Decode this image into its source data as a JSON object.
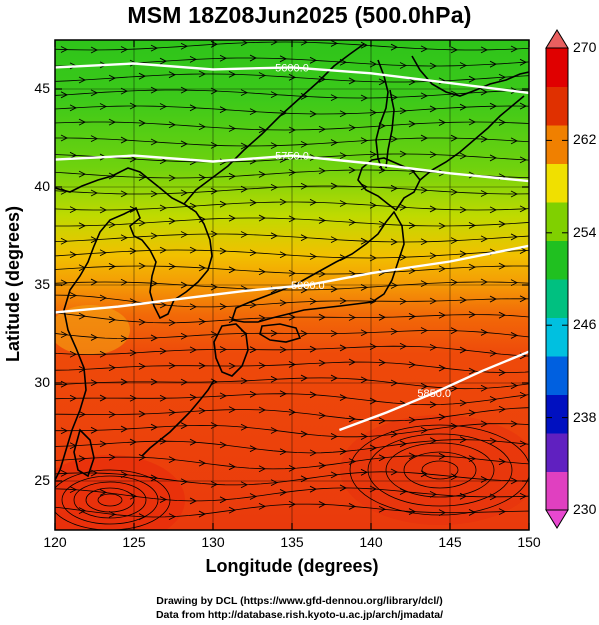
{
  "title": "MSM 18Z08Jun2025 (500.0hPa)",
  "x_axis": {
    "label": "Longitude (degrees)",
    "range": [
      120,
      150
    ],
    "ticks": [
      "120",
      "125",
      "130",
      "135",
      "140",
      "145",
      "150"
    ]
  },
  "y_axis": {
    "label": "Latitude  (degrees)",
    "range": [
      22.5,
      47.5
    ],
    "ticks": [
      "25",
      "30",
      "35",
      "40",
      "45"
    ]
  },
  "colorbar": {
    "range": [
      230,
      270
    ],
    "ticks": [
      "230",
      "238",
      "246",
      "254",
      "262",
      "270"
    ],
    "colors": [
      "#e040c0",
      "#6020c0",
      "#0010c0",
      "#0060e0",
      "#00c0e0",
      "#00c080",
      "#20c020",
      "#80d000",
      "#f0e000",
      "#f08000",
      "#e03000",
      "#e00000"
    ]
  },
  "contours": [
    {
      "label": "5600.0",
      "lat_at_lon": [
        [
          120,
          46.1
        ],
        [
          125,
          46.3
        ],
        [
          130,
          46.0
        ],
        [
          135,
          46.1
        ],
        [
          140,
          45.8
        ],
        [
          145,
          45.3
        ],
        [
          150,
          44.8
        ]
      ]
    },
    {
      "label": "5750.0",
      "lat_at_lon": [
        [
          120,
          41.4
        ],
        [
          125,
          41.6
        ],
        [
          130,
          41.3
        ],
        [
          135,
          41.6
        ],
        [
          140,
          41.2
        ],
        [
          145,
          40.7
        ],
        [
          150,
          40.3
        ]
      ]
    },
    {
      "label": "5900.0",
      "lat_at_lon": [
        [
          120,
          33.6
        ],
        [
          124,
          33.9
        ],
        [
          128,
          34.3
        ],
        [
          132,
          34.7
        ],
        [
          136,
          35.0
        ],
        [
          140,
          35.6
        ],
        [
          145,
          36.2
        ],
        [
          150,
          37.0
        ]
      ]
    },
    {
      "label": "5850.0",
      "lat_at_lon": [
        [
          138,
          27.6
        ],
        [
          141,
          28.5
        ],
        [
          144,
          29.5
        ],
        [
          147,
          30.6
        ],
        [
          150,
          31.6
        ]
      ]
    }
  ],
  "credit": [
    "Drawing by DCL (https://www.gfd-dennou.org/library/dcl/)",
    "Data from http://database.rish.kyoto-u.ac.jp/arch/jmadata/"
  ]
}
